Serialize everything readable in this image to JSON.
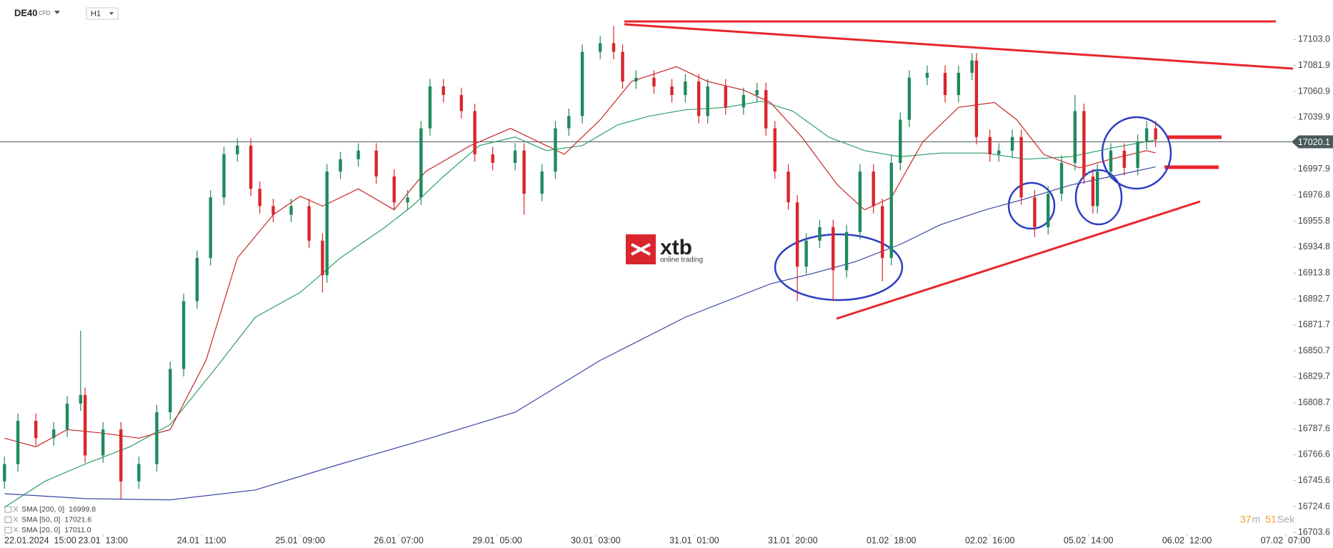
{
  "chart_data": {
    "type": "candlestick",
    "symbol": "DE40",
    "symbol_kind": "CFD",
    "timeframe": "H1",
    "logo": {
      "brand": "xtb",
      "tagline": "online trading"
    },
    "up_color": "#1f8a5b",
    "down_color": "#d9262c",
    "grid": false,
    "xlim": [
      -1,
      296.6
    ],
    "ylim": [
      16702,
      17135
    ],
    "xticks": [
      {
        "value": 0,
        "label": "22.01.2024  15:00"
      },
      {
        "value": 22,
        "label": "23.01  13:00"
      },
      {
        "value": 44,
        "label": "24.01  11:00"
      },
      {
        "value": 66,
        "label": "25.01  09:00"
      },
      {
        "value": 88,
        "label": "26.01  07:00"
      },
      {
        "value": 110,
        "label": "29.01  05:00"
      },
      {
        "value": 132,
        "label": "30.01  03:00"
      },
      {
        "value": 154,
        "label": "31.01  01:00"
      },
      {
        "value": 176,
        "label": "31.01  20:00"
      },
      {
        "value": 198,
        "label": "01.02  18:00"
      },
      {
        "value": 220,
        "label": "02.02  16:00"
      },
      {
        "value": 242,
        "label": "05.02  14:00"
      },
      {
        "value": 264,
        "label": "06.02  12:00"
      },
      {
        "value": 286,
        "label": "07.02  07:00"
      }
    ],
    "yticks": [
      {
        "value": 17103.0,
        "label": "17103.0"
      },
      17081.9,
      17060.9,
      17039.9,
      16997.9,
      16976.8,
      16955.8,
      16934.8,
      16913.8,
      16892.7,
      16871.7,
      16850.7,
      16829.7,
      16808.7,
      16787.6,
      16766.6,
      16745.6,
      16724.6,
      16703.6
    ],
    "current_price": 17020.1,
    "x": [
      0,
      3,
      7,
      11,
      14,
      17,
      18,
      22,
      26,
      30,
      34,
      37,
      40,
      43,
      46,
      49,
      52,
      55,
      57,
      60,
      64,
      68,
      71,
      72,
      75,
      79,
      83,
      87,
      90,
      93,
      95,
      98,
      102,
      105,
      109,
      114,
      116,
      120,
      123,
      126,
      129,
      133,
      136,
      138,
      141,
      145,
      149,
      152,
      155,
      157,
      161,
      165,
      168,
      170,
      172,
      175,
      177,
      179,
      182,
      185,
      188,
      191,
      194,
      196,
      198,
      200,
      202,
      206,
      210,
      213,
      216,
      217,
      220,
      222,
      225,
      227,
      230,
      233,
      236,
      239,
      241,
      243,
      244,
      247,
      250,
      253,
      255,
      257
    ],
    "open": [
      16745,
      16759,
      16794,
      16780,
      16787,
      16808,
      16815,
      16766,
      16787,
      16745,
      16759,
      16801,
      16836,
      16891,
      16926,
      16975,
      17010,
      17017,
      16982,
      16968,
      16961,
      16968,
      16940,
      16912,
      16996,
      17006,
      17013,
      16992,
      16971,
      16975,
      17031,
      17065,
      17058,
      17045,
      17010,
      17003,
      17013,
      16978,
      16996,
      17031,
      17041,
      17093,
      17100,
      17093,
      17069,
      17072,
      17065,
      17058,
      17069,
      17041,
      17065,
      17048,
      17058,
      17062,
      17031,
      16996,
      16971,
      16919,
      16940,
      16951,
      16916,
      16947,
      16996,
      16968,
      16926,
      17003,
      17038,
      17072,
      17076,
      17058,
      17076,
      17086,
      17024,
      17010,
      17013,
      17024,
      16975,
      16951,
      16978,
      17003,
      17045,
      16992,
      16968,
      16996,
      17013,
      16999,
      17020,
      17031
    ],
    "high": [
      16765,
      16800,
      16800,
      16793,
      16814,
      16867,
      16821,
      16793,
      16793,
      16765,
      16807,
      16842,
      16897,
      16932,
      16981,
      17016,
      17023,
      17023,
      16988,
      16974,
      16974,
      16974,
      16946,
      17002,
      17012,
      17019,
      17019,
      16998,
      16981,
      17037,
      17071,
      17071,
      17064,
      17051,
      17016,
      17019,
      17019,
      17002,
      17037,
      17047,
      17099,
      17106,
      17114,
      17099,
      17078,
      17078,
      17071,
      17075,
      17075,
      17071,
      17071,
      17064,
      17068,
      17068,
      17037,
      17002,
      16977,
      16946,
      16957,
      16957,
      16953,
      17002,
      17002,
      16974,
      17009,
      17044,
      17078,
      17082,
      17082,
      17082,
      17092,
      17092,
      17030,
      17019,
      17030,
      17030,
      16981,
      16984,
      17009,
      17058,
      17051,
      16998,
      17002,
      17019,
      17019,
      17026,
      17037,
      17037
    ],
    "low": [
      16739,
      16753,
      16774,
      16774,
      16781,
      16802,
      16760,
      16760,
      16731,
      16739,
      16753,
      16795,
      16830,
      16885,
      16920,
      16969,
      17004,
      16976,
      16962,
      16955,
      16955,
      16934,
      16898,
      16906,
      16990,
      17000,
      16986,
      16965,
      16965,
      16969,
      17025,
      17052,
      17039,
      17004,
      16997,
      16997,
      16961,
      16972,
      16990,
      17025,
      17035,
      17087,
      17087,
      17063,
      17063,
      17059,
      17052,
      17052,
      17035,
      17035,
      17042,
      17042,
      17052,
      17025,
      16990,
      16965,
      16891,
      16913,
      16934,
      16891,
      16910,
      16941,
      16962,
      16907,
      16920,
      16997,
      17032,
      17066,
      17052,
      17052,
      17070,
      17018,
      17004,
      17004,
      17007,
      16969,
      16943,
      16945,
      16972,
      16997,
      16986,
      16962,
      16962,
      16990,
      16993,
      16993,
      17014,
      17016
    ],
    "close": [
      16759,
      16794,
      16780,
      16787,
      16808,
      16815,
      16766,
      16787,
      16745,
      16759,
      16801,
      16836,
      16891,
      16926,
      16975,
      17010,
      17017,
      16982,
      16968,
      16961,
      16968,
      16940,
      16912,
      16996,
      17006,
      17013,
      16992,
      16971,
      16975,
      17031,
      17065,
      17058,
      17045,
      17010,
      17003,
      17013,
      16978,
      16996,
      17031,
      17041,
      17093,
      17100,
      17093,
      17069,
      17072,
      17065,
      17058,
      17069,
      17041,
      17065,
      17048,
      17058,
      17062,
      17031,
      16996,
      16971,
      16919,
      16940,
      16951,
      16916,
      16947,
      16996,
      16968,
      16926,
      17003,
      17038,
      17072,
      17076,
      17058,
      17076,
      17086,
      17024,
      17010,
      17013,
      17024,
      16975,
      16951,
      16978,
      17003,
      17045,
      16992,
      16968,
      16996,
      17013,
      16999,
      17020,
      17031,
      17022
    ],
    "sma": [
      {
        "name": "SMA [200, 0]",
        "legend_value": 16999.8,
        "color": "#3b44a8",
        "x": [
          0,
          18,
          37,
          56,
          75,
          95,
          114,
          133,
          152,
          171,
          181,
          190,
          200,
          209,
          219,
          228,
          238,
          247,
          257
        ],
        "values": [
          16735,
          16731,
          16730,
          16738,
          16759,
          16780,
          16801,
          16843,
          16878,
          16905,
          16914,
          16923,
          16937,
          16953,
          16965,
          16974,
          16985,
          16992,
          16999.8
        ]
      },
      {
        "name": "SMA [50, 0]",
        "legend_value": 17021.6,
        "color": "#2e9e6a",
        "x": [
          0,
          9,
          18,
          28,
          37,
          47,
          56,
          66,
          75,
          85,
          91,
          98,
          106,
          114,
          121,
          129,
          137,
          144,
          152,
          161,
          169,
          176,
          184,
          192,
          200,
          209,
          219,
          228,
          238,
          247,
          257
        ],
        "values": [
          16724,
          16745,
          16759,
          16773,
          16791,
          16836,
          16878,
          16898,
          16926,
          16951,
          16968,
          16992,
          17017,
          17024,
          17013,
          17017,
          17034,
          17041,
          17046,
          17048,
          17053,
          17045,
          17024,
          17013,
          17008,
          17011,
          17011,
          17006,
          17008,
          17015,
          17021.6
        ]
      },
      {
        "name": "SMA [20, 0]",
        "legend_value": {
          "value": 17011.0,
          "label": "17011.0"
        },
        "color": "#c62828",
        "x": [
          0,
          7,
          14,
          22,
          30,
          37,
          45,
          52,
          60,
          66,
          71,
          79,
          87,
          94,
          104,
          113,
          117,
          125,
          133,
          140,
          150,
          157,
          165,
          171,
          178,
          186,
          192,
          198,
          205,
          213,
          221,
          226,
          232,
          240,
          247,
          255,
          257
        ],
        "values": [
          16780,
          16773,
          16787,
          16784,
          16780,
          16787,
          16843,
          16926,
          16961,
          16976,
          16968,
          16982,
          16965,
          16996,
          17017,
          17031,
          17024,
          17010,
          17038,
          17069,
          17081,
          17069,
          17062,
          17052,
          17024,
          16985,
          16965,
          16975,
          17020,
          17048,
          17052,
          17038,
          17010,
          16999,
          17006,
          17013,
          17011
        ]
      }
    ],
    "countdown": [
      {
        "value": 37,
        "unit": "m"
      },
      {
        "value": 51,
        "unit": "Sek"
      }
    ]
  }
}
